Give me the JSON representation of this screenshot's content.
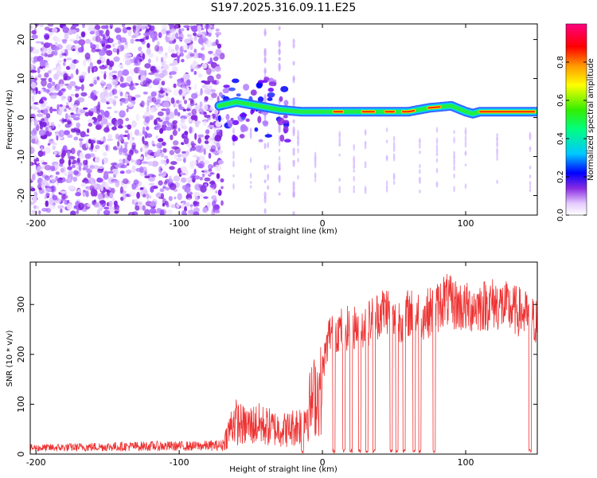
{
  "title": "S197.2025.316.09.11.E25",
  "chart_data": [
    {
      "type": "heatmap",
      "name": "spectrogram",
      "xlabel": "Height of straight line (km)",
      "ylabel": "Frequency (Hz)",
      "xlim": [
        -204,
        150
      ],
      "ylim": [
        -25,
        24
      ],
      "xticks": [
        -200,
        -100,
        0,
        100
      ],
      "yticks": [
        20,
        10,
        0,
        -10,
        -20
      ],
      "colorbar": {
        "label": "Normalized spectral amplitude",
        "range": [
          0,
          1
        ],
        "ticks": [
          0.0,
          0.2,
          0.4,
          0.6,
          0.8
        ]
      },
      "carrier_line": {
        "x": [
          -72,
          -60,
          -45,
          -30,
          -15,
          0,
          20,
          40,
          60,
          75,
          90,
          100,
          105,
          110,
          130,
          150
        ],
        "freq": [
          3,
          4,
          3,
          2,
          1.5,
          1.5,
          1.5,
          1.5,
          1.5,
          2.5,
          3,
          1.5,
          1,
          1.5,
          1.5,
          1.5
        ]
      },
      "noise_region_x": [
        -204,
        -70
      ]
    },
    {
      "type": "line",
      "name": "snr",
      "xlabel": "Height of straight line (km)",
      "ylabel": "SNR (10 * v/v)",
      "xlim": [
        -204,
        150
      ],
      "ylim": [
        0,
        385
      ],
      "xticks": [
        -200,
        -100,
        0,
        100
      ],
      "yticks": [
        0,
        100,
        200,
        300
      ],
      "color": "#ee3333",
      "series": [
        {
          "name": "SNR",
          "envelope": {
            "x": [
              -204,
              -160,
              -120,
              -90,
              -70,
              -62,
              -55,
              -45,
              -35,
              -25,
              -15,
              -5,
              0,
              5,
              10,
              20,
              30,
              40,
              45,
              50,
              60,
              70,
              80,
              85,
              90,
              100,
              110,
              120,
              130,
              140,
              145,
              150
            ],
            "level": [
              15,
              18,
              20,
              20,
              22,
              90,
              75,
              80,
              70,
              65,
              80,
              160,
              175,
              250,
              255,
              260,
              265,
              290,
              300,
              270,
              290,
              285,
              300,
              320,
              310,
              300,
              305,
              310,
              300,
              290,
              280,
              270
            ]
          },
          "dropouts_x": [
            -14,
            8,
            15,
            20,
            26,
            31,
            36,
            48,
            52,
            57,
            64,
            68,
            78,
            145
          ]
        }
      ]
    }
  ]
}
